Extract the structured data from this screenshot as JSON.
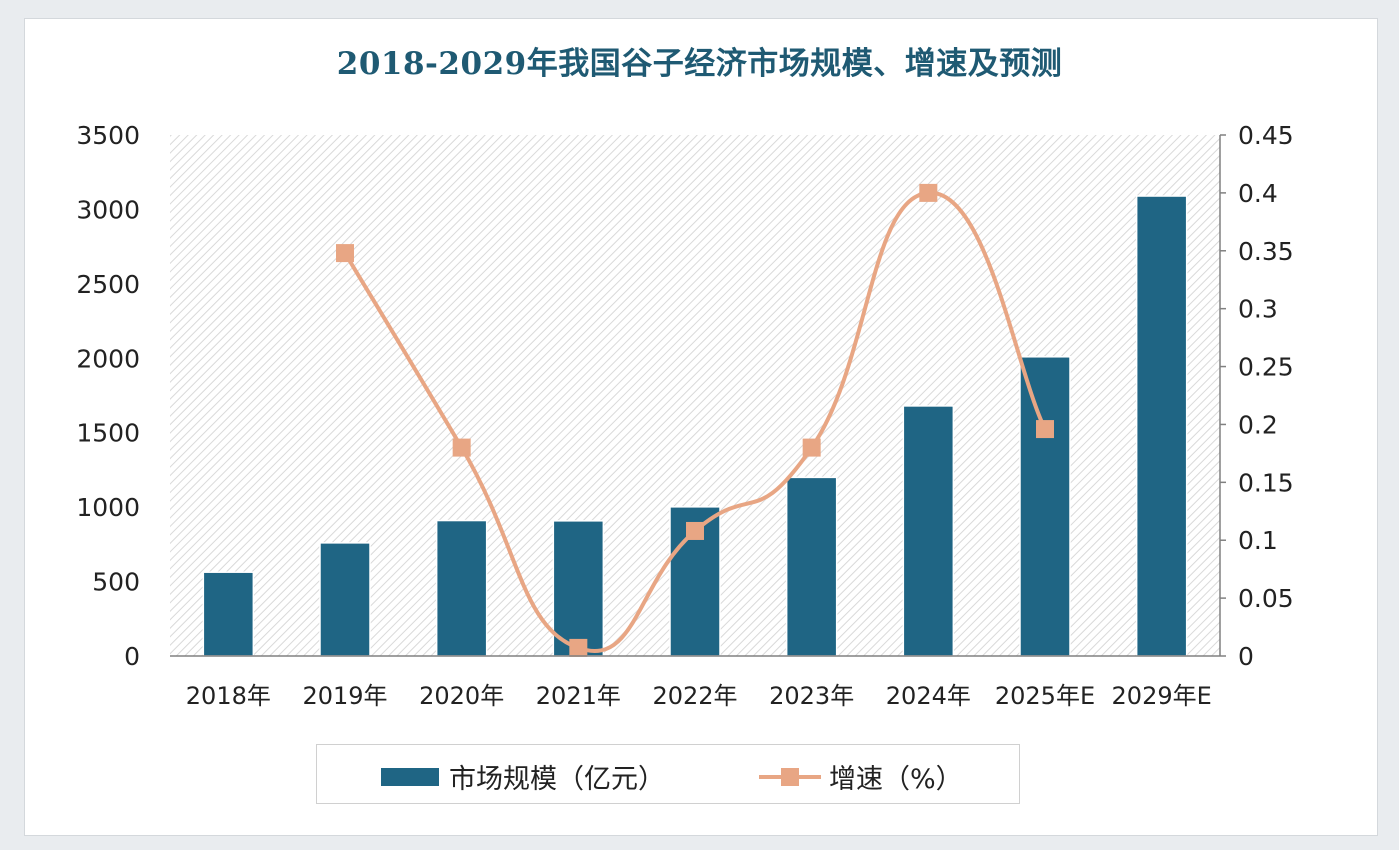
{
  "chart_data": {
    "type": "bar",
    "title": "2018-2029年我国谷子经济市场规模、增速及预测",
    "categories": [
      "2018年",
      "2019年",
      "2020年",
      "2021年",
      "2022年",
      "2023年",
      "2024年",
      "2025年E",
      "2029年E"
    ],
    "series": [
      {
        "name": "市场规模（亿元）",
        "type": "bar",
        "axis": "left",
        "color": "#1f6584",
        "values": [
          563,
          760,
          910,
          908,
          1002,
          1200,
          1680,
          2010,
          3090
        ]
      },
      {
        "name": "增速（%）",
        "type": "line",
        "axis": "right",
        "color": "#e8a684",
        "marker": "square",
        "values": [
          null,
          0.348,
          0.18,
          0.007,
          0.108,
          0.18,
          0.4,
          0.196,
          null
        ]
      }
    ],
    "y_left": {
      "min": 0,
      "max": 3500,
      "ticks": [
        "0",
        "500",
        "1000",
        "1500",
        "2000",
        "2500",
        "3000",
        "3500"
      ]
    },
    "y_right": {
      "min": 0,
      "max": 0.45,
      "ticks": [
        "0",
        "0.05",
        "0.1",
        "0.15",
        "0.2",
        "0.25",
        "0.3",
        "0.35",
        "0.4",
        "0.45"
      ]
    },
    "grid": false,
    "legend_position": "bottom"
  }
}
